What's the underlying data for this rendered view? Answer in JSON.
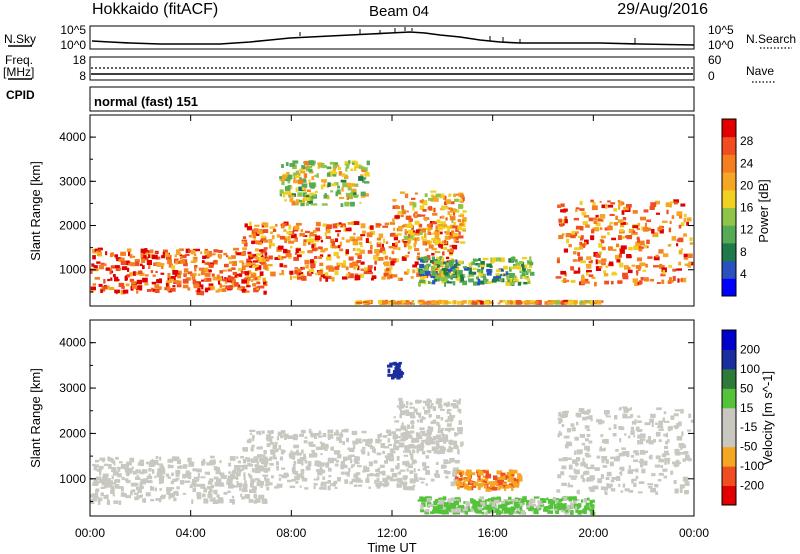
{
  "header": {
    "station": "Hokkaido (fitACF)",
    "beam": "Beam 04",
    "date": "29/Aug/2016"
  },
  "top_panel": {
    "left_label": "N.Sky",
    "left_ticks": [
      "10^5",
      "10^0"
    ],
    "right_label": "N.Search",
    "right_ticks": [
      "10^5",
      "10^0"
    ]
  },
  "freq_panel": {
    "left_label_1": "Freq.",
    "left_label_2": "[MHz]",
    "left_ticks": [
      "18",
      "8"
    ],
    "right_label": "Nave",
    "right_ticks": [
      "60",
      "0"
    ]
  },
  "cpid_panel": {
    "label": "CPID",
    "text": "normal (fast) 151"
  },
  "chart_data": [
    {
      "type": "heatmap",
      "name_role": "power",
      "ylabel": "Slant Range [km]",
      "xlabel": "",
      "x_ticks": [
        "00:00",
        "04:00",
        "08:00",
        "12:00",
        "16:00",
        "20:00",
        "00:00"
      ],
      "x_range_hours": [
        0,
        24
      ],
      "y_ticks": [
        1000,
        2000,
        3000,
        4000
      ],
      "ylim": [
        180,
        4500
      ],
      "colorbar": {
        "label": "Power [dB]",
        "ticks": [
          4,
          8,
          12,
          16,
          20,
          24,
          28
        ],
        "range": [
          0,
          32
        ],
        "colors": [
          "#0000ff",
          "#2a52be",
          "#1f7a4a",
          "#55aa55",
          "#8fc34a",
          "#f0d020",
          "#f5a623",
          "#f57e20",
          "#f04e20",
          "#e00000"
        ]
      },
      "regions": [
        {
          "t": [
            0,
            7
          ],
          "r": [
            500,
            1500
          ],
          "level": 26
        },
        {
          "t": [
            6,
            14.5
          ],
          "r": [
            800,
            2100
          ],
          "level": 24
        },
        {
          "t": [
            12,
            14.8
          ],
          "r": [
            1600,
            2800
          ],
          "level": 22
        },
        {
          "t": [
            7.5,
            11
          ],
          "r": [
            2500,
            3500
          ],
          "level": 16
        },
        {
          "t": [
            13,
            17.5
          ],
          "r": [
            700,
            1300
          ],
          "level": 12
        },
        {
          "t": [
            18.5,
            24
          ],
          "r": [
            700,
            2600
          ],
          "level": 24
        },
        {
          "t": [
            10.5,
            20.5
          ],
          "r": [
            180,
            300
          ],
          "level": 22
        }
      ]
    },
    {
      "type": "heatmap",
      "name_role": "velocity",
      "ylabel": "Slant Range [km]",
      "xlabel": "Time UT",
      "x_ticks": [
        "00:00",
        "04:00",
        "08:00",
        "12:00",
        "16:00",
        "20:00",
        "00:00"
      ],
      "x_range_hours": [
        0,
        24
      ],
      "y_ticks": [
        1000,
        2000,
        3000,
        4000
      ],
      "ylim": [
        180,
        4500
      ],
      "colorbar": {
        "label": "Velocity [m s^-1]",
        "ticks": [
          200,
          100,
          50,
          15,
          -15,
          -50,
          -100,
          -200
        ],
        "range": [
          -250,
          250
        ],
        "colors": [
          "#e00000",
          "#f04e20",
          "#f5a623",
          "#c8c8c0",
          "#c8c8c0",
          "#55c33a",
          "#2e7a3a",
          "#1a2e9e",
          "#0000cc"
        ]
      },
      "regions": [
        {
          "t": [
            0,
            7
          ],
          "r": [
            500,
            1500
          ],
          "v": 0
        },
        {
          "t": [
            6,
            14.5
          ],
          "r": [
            800,
            2100
          ],
          "v": 0
        },
        {
          "t": [
            12,
            14.8
          ],
          "r": [
            1600,
            2800
          ],
          "v": 0
        },
        {
          "t": [
            14.5,
            17
          ],
          "r": [
            800,
            1200
          ],
          "v": -70
        },
        {
          "t": [
            13,
            20
          ],
          "r": [
            180,
            600
          ],
          "v": 40
        },
        {
          "t": [
            18.5,
            24
          ],
          "r": [
            700,
            2600
          ],
          "v": 0
        },
        {
          "t": [
            11.8,
            12.3
          ],
          "r": [
            3300,
            3600
          ],
          "v": 220
        }
      ]
    }
  ]
}
